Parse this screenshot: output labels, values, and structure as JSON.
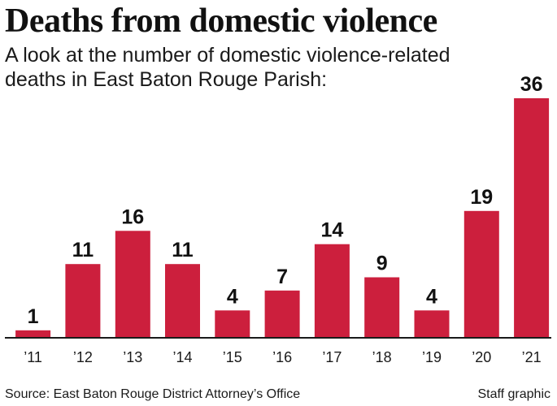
{
  "title": "Deaths from domestic violence",
  "subtitle": "A look at the number of domestic violence-related deaths in East Baton Rouge Parish:",
  "source": "Source: East Baton Rouge District Attorney’s Office",
  "credit": "Staff graphic",
  "colors": {
    "bar": "#cc1f3d",
    "baseline": "#1a1a1a"
  },
  "chart_data": {
    "type": "bar",
    "categories": [
      "’11",
      "’12",
      "’13",
      "’14",
      "’15",
      "’16",
      "’17",
      "’18",
      "’19",
      "’20",
      "’21"
    ],
    "values": [
      1,
      11,
      16,
      11,
      4,
      7,
      14,
      9,
      4,
      19,
      36
    ],
    "title": "Deaths from domestic violence",
    "xlabel": "",
    "ylabel": "",
    "ylim": [
      0,
      36
    ],
    "grid": false,
    "data_labels": true
  }
}
